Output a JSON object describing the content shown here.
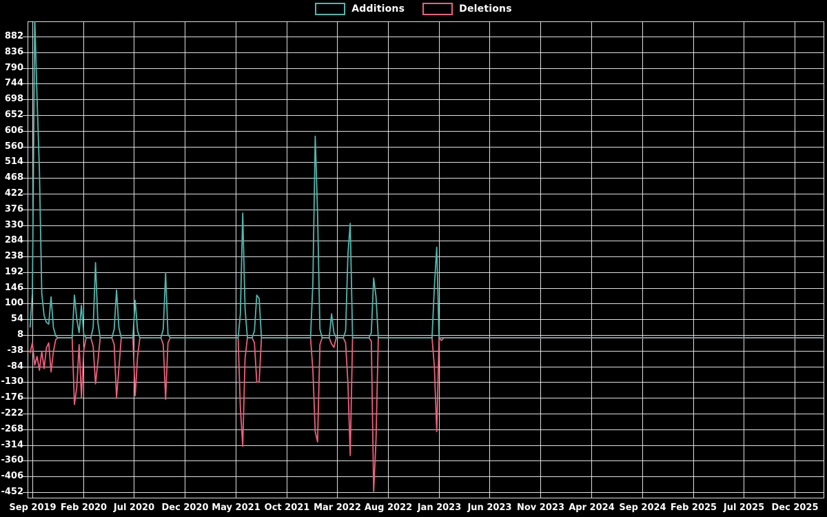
{
  "legend": {
    "additions_label": "Additions",
    "deletions_label": "Deletions"
  },
  "colors": {
    "additions": "#4fb8ae",
    "deletions": "#ef5f7e",
    "background": "#000000",
    "grid": "#e0e0e0",
    "text": "#ffffff",
    "zero_baseline": "#7f98a0"
  },
  "chart_data": {
    "type": "line",
    "title": "",
    "xlabel": "",
    "ylabel": "",
    "grid": true,
    "legend_position": "top-center",
    "x_axis": {
      "ticks": [
        {
          "label": "Sep 2019",
          "date": "2019-09-01"
        },
        {
          "label": "Feb 2020",
          "date": "2020-02-01"
        },
        {
          "label": "Jul 2020",
          "date": "2020-07-01"
        },
        {
          "label": "Dec 2020",
          "date": "2020-12-01"
        },
        {
          "label": "May 2021",
          "date": "2021-05-01"
        },
        {
          "label": "Oct 2021",
          "date": "2021-10-01"
        },
        {
          "label": "Mar 2022",
          "date": "2022-03-01"
        },
        {
          "label": "Aug 2022",
          "date": "2022-08-01"
        },
        {
          "label": "Jan 2023",
          "date": "2023-01-01"
        },
        {
          "label": "Jun 2023",
          "date": "2023-06-01"
        },
        {
          "label": "Nov 2023",
          "date": "2023-11-01"
        },
        {
          "label": "Apr 2024",
          "date": "2024-04-01"
        },
        {
          "label": "Sep 2024",
          "date": "2024-09-01"
        },
        {
          "label": "Feb 2025",
          "date": "2025-02-01"
        },
        {
          "label": "Jul 2025",
          "date": "2025-07-01"
        },
        {
          "label": "Dec 2025",
          "date": "2025-12-01"
        }
      ]
    },
    "y_axis": {
      "ticks": [
        882,
        836,
        790,
        744,
        698,
        652,
        606,
        560,
        514,
        468,
        422,
        376,
        330,
        284,
        238,
        192,
        146,
        100,
        54,
        8,
        -38,
        -84,
        -130,
        -176,
        -222,
        -268,
        -314,
        -360,
        -406,
        -452
      ],
      "approx_range": [
        -470,
        928
      ]
    },
    "series": [
      {
        "name": "Additions",
        "color": "#4fb8ae"
      },
      {
        "name": "Deletions",
        "color": "#ef5f7e"
      }
    ],
    "range": {
      "start": "2019-08-25",
      "end": "2025-12-28"
    },
    "baseline_note": "weekly series; all weeks not listed below are 0 for both additions and deletions; line is flat at 0 after Jan 2023",
    "weekly_points": [
      {
        "date": "2019-08-25",
        "additions": 30,
        "deletions": -45
      },
      {
        "date": "2019-09-01",
        "additions": 130,
        "deletions": -15
      },
      {
        "date": "2019-09-08",
        "additions": 940,
        "deletions": -80
      },
      {
        "date": "2019-09-15",
        "additions": 700,
        "deletions": -55
      },
      {
        "date": "2019-09-22",
        "additions": 490,
        "deletions": -95
      },
      {
        "date": "2019-09-29",
        "additions": 130,
        "deletions": -40
      },
      {
        "date": "2019-10-06",
        "additions": 65,
        "deletions": -90
      },
      {
        "date": "2019-10-13",
        "additions": 45,
        "deletions": -30
      },
      {
        "date": "2019-10-20",
        "additions": 40,
        "deletions": -15
      },
      {
        "date": "2019-10-27",
        "additions": 120,
        "deletions": -100
      },
      {
        "date": "2019-11-03",
        "additions": 30,
        "deletions": -40
      },
      {
        "date": "2019-11-10",
        "additions": 5,
        "deletions": -5
      },
      {
        "date": "2020-01-05",
        "additions": 125,
        "deletions": -195
      },
      {
        "date": "2020-01-12",
        "additions": 55,
        "deletions": -145
      },
      {
        "date": "2020-01-19",
        "additions": 15,
        "deletions": -20
      },
      {
        "date": "2020-01-26",
        "additions": 95,
        "deletions": -175
      },
      {
        "date": "2020-02-02",
        "additions": 10,
        "deletions": -35
      },
      {
        "date": "2020-03-01",
        "additions": 30,
        "deletions": -25
      },
      {
        "date": "2020-03-08",
        "additions": 220,
        "deletions": -135
      },
      {
        "date": "2020-03-15",
        "additions": 45,
        "deletions": -70
      },
      {
        "date": "2020-05-03",
        "additions": 25,
        "deletions": -20
      },
      {
        "date": "2020-05-10",
        "additions": 140,
        "deletions": -175
      },
      {
        "date": "2020-05-17",
        "additions": 30,
        "deletions": -90
      },
      {
        "date": "2020-07-05",
        "additions": 110,
        "deletions": -170
      },
      {
        "date": "2020-07-12",
        "additions": 20,
        "deletions": -55
      },
      {
        "date": "2020-09-27",
        "additions": 25,
        "deletions": -20
      },
      {
        "date": "2020-10-04",
        "additions": 190,
        "deletions": -180
      },
      {
        "date": "2020-10-11",
        "additions": 10,
        "deletions": -15
      },
      {
        "date": "2021-05-16",
        "additions": 70,
        "deletions": -205
      },
      {
        "date": "2021-05-23",
        "additions": 365,
        "deletions": -318
      },
      {
        "date": "2021-05-30",
        "additions": 85,
        "deletions": -60
      },
      {
        "date": "2021-06-27",
        "additions": 20,
        "deletions": -15
      },
      {
        "date": "2021-07-04",
        "additions": 125,
        "deletions": -130
      },
      {
        "date": "2021-07-11",
        "additions": 115,
        "deletions": -130
      },
      {
        "date": "2021-12-19",
        "additions": 160,
        "deletions": -95
      },
      {
        "date": "2021-12-26",
        "additions": 590,
        "deletions": -275
      },
      {
        "date": "2022-01-02",
        "additions": 365,
        "deletions": -305
      },
      {
        "date": "2022-01-09",
        "additions": 25,
        "deletions": -20
      },
      {
        "date": "2022-02-13",
        "additions": 70,
        "deletions": -18
      },
      {
        "date": "2022-02-20",
        "additions": 15,
        "deletions": -28
      },
      {
        "date": "2022-03-27",
        "additions": 20,
        "deletions": -15
      },
      {
        "date": "2022-04-03",
        "additions": 245,
        "deletions": -135
      },
      {
        "date": "2022-04-10",
        "additions": 335,
        "deletions": -345
      },
      {
        "date": "2022-06-12",
        "additions": 15,
        "deletions": -10
      },
      {
        "date": "2022-06-19",
        "additions": 175,
        "deletions": -450
      },
      {
        "date": "2022-06-26",
        "additions": 120,
        "deletions": -300
      },
      {
        "date": "2022-12-18",
        "additions": 150,
        "deletions": -85
      },
      {
        "date": "2022-12-25",
        "additions": 265,
        "deletions": -275
      },
      {
        "date": "2023-01-08",
        "additions": 0,
        "deletions": -8
      }
    ]
  }
}
